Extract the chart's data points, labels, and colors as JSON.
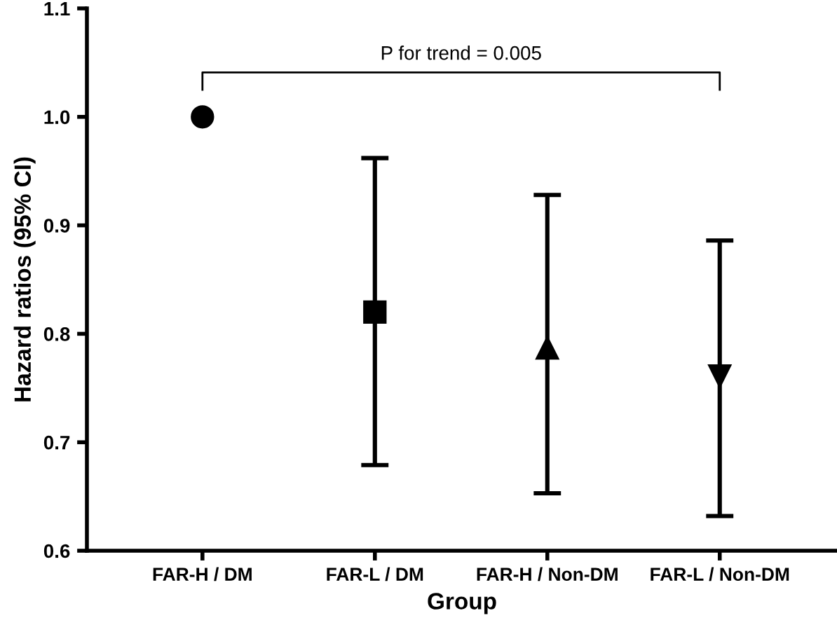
{
  "chart_data": {
    "type": "scatter",
    "xlabel": "Group",
    "ylabel": "Hazard ratios (95% CI)",
    "categories": [
      "FAR-H / DM",
      "FAR-L / DM",
      "FAR-H / Non-DM",
      "FAR-L / Non-DM"
    ],
    "series": [
      {
        "color": "#000000",
        "marker": "circle",
        "values": [
          1.0,
          null,
          null,
          null
        ],
        "errors": [
          null,
          null,
          null,
          null
        ]
      },
      {
        "color": "#000000",
        "marker": "square",
        "values": [
          null,
          0.82,
          null,
          null
        ],
        "errors": [
          null,
          [
            0.679,
            0.962
          ],
          null,
          null
        ]
      },
      {
        "color": "#000000",
        "marker": "triangle",
        "values": [
          null,
          null,
          0.787,
          null
        ],
        "errors": [
          null,
          null,
          [
            0.653,
            0.928
          ],
          null
        ]
      },
      {
        "color": "#000000",
        "marker": "triangle_down",
        "values": [
          null,
          null,
          null,
          0.761
        ],
        "errors": [
          null,
          null,
          null,
          [
            0.632,
            0.886
          ]
        ]
      }
    ],
    "ylim": [
      0.6,
      1.1
    ],
    "yticks": [
      0.6,
      0.7,
      0.8,
      0.9,
      {
        "value": 1,
        "label": "1.0"
      },
      1.1
    ],
    "annotations": [
      "P for trend = 0.005"
    ],
    "grid": false
  }
}
